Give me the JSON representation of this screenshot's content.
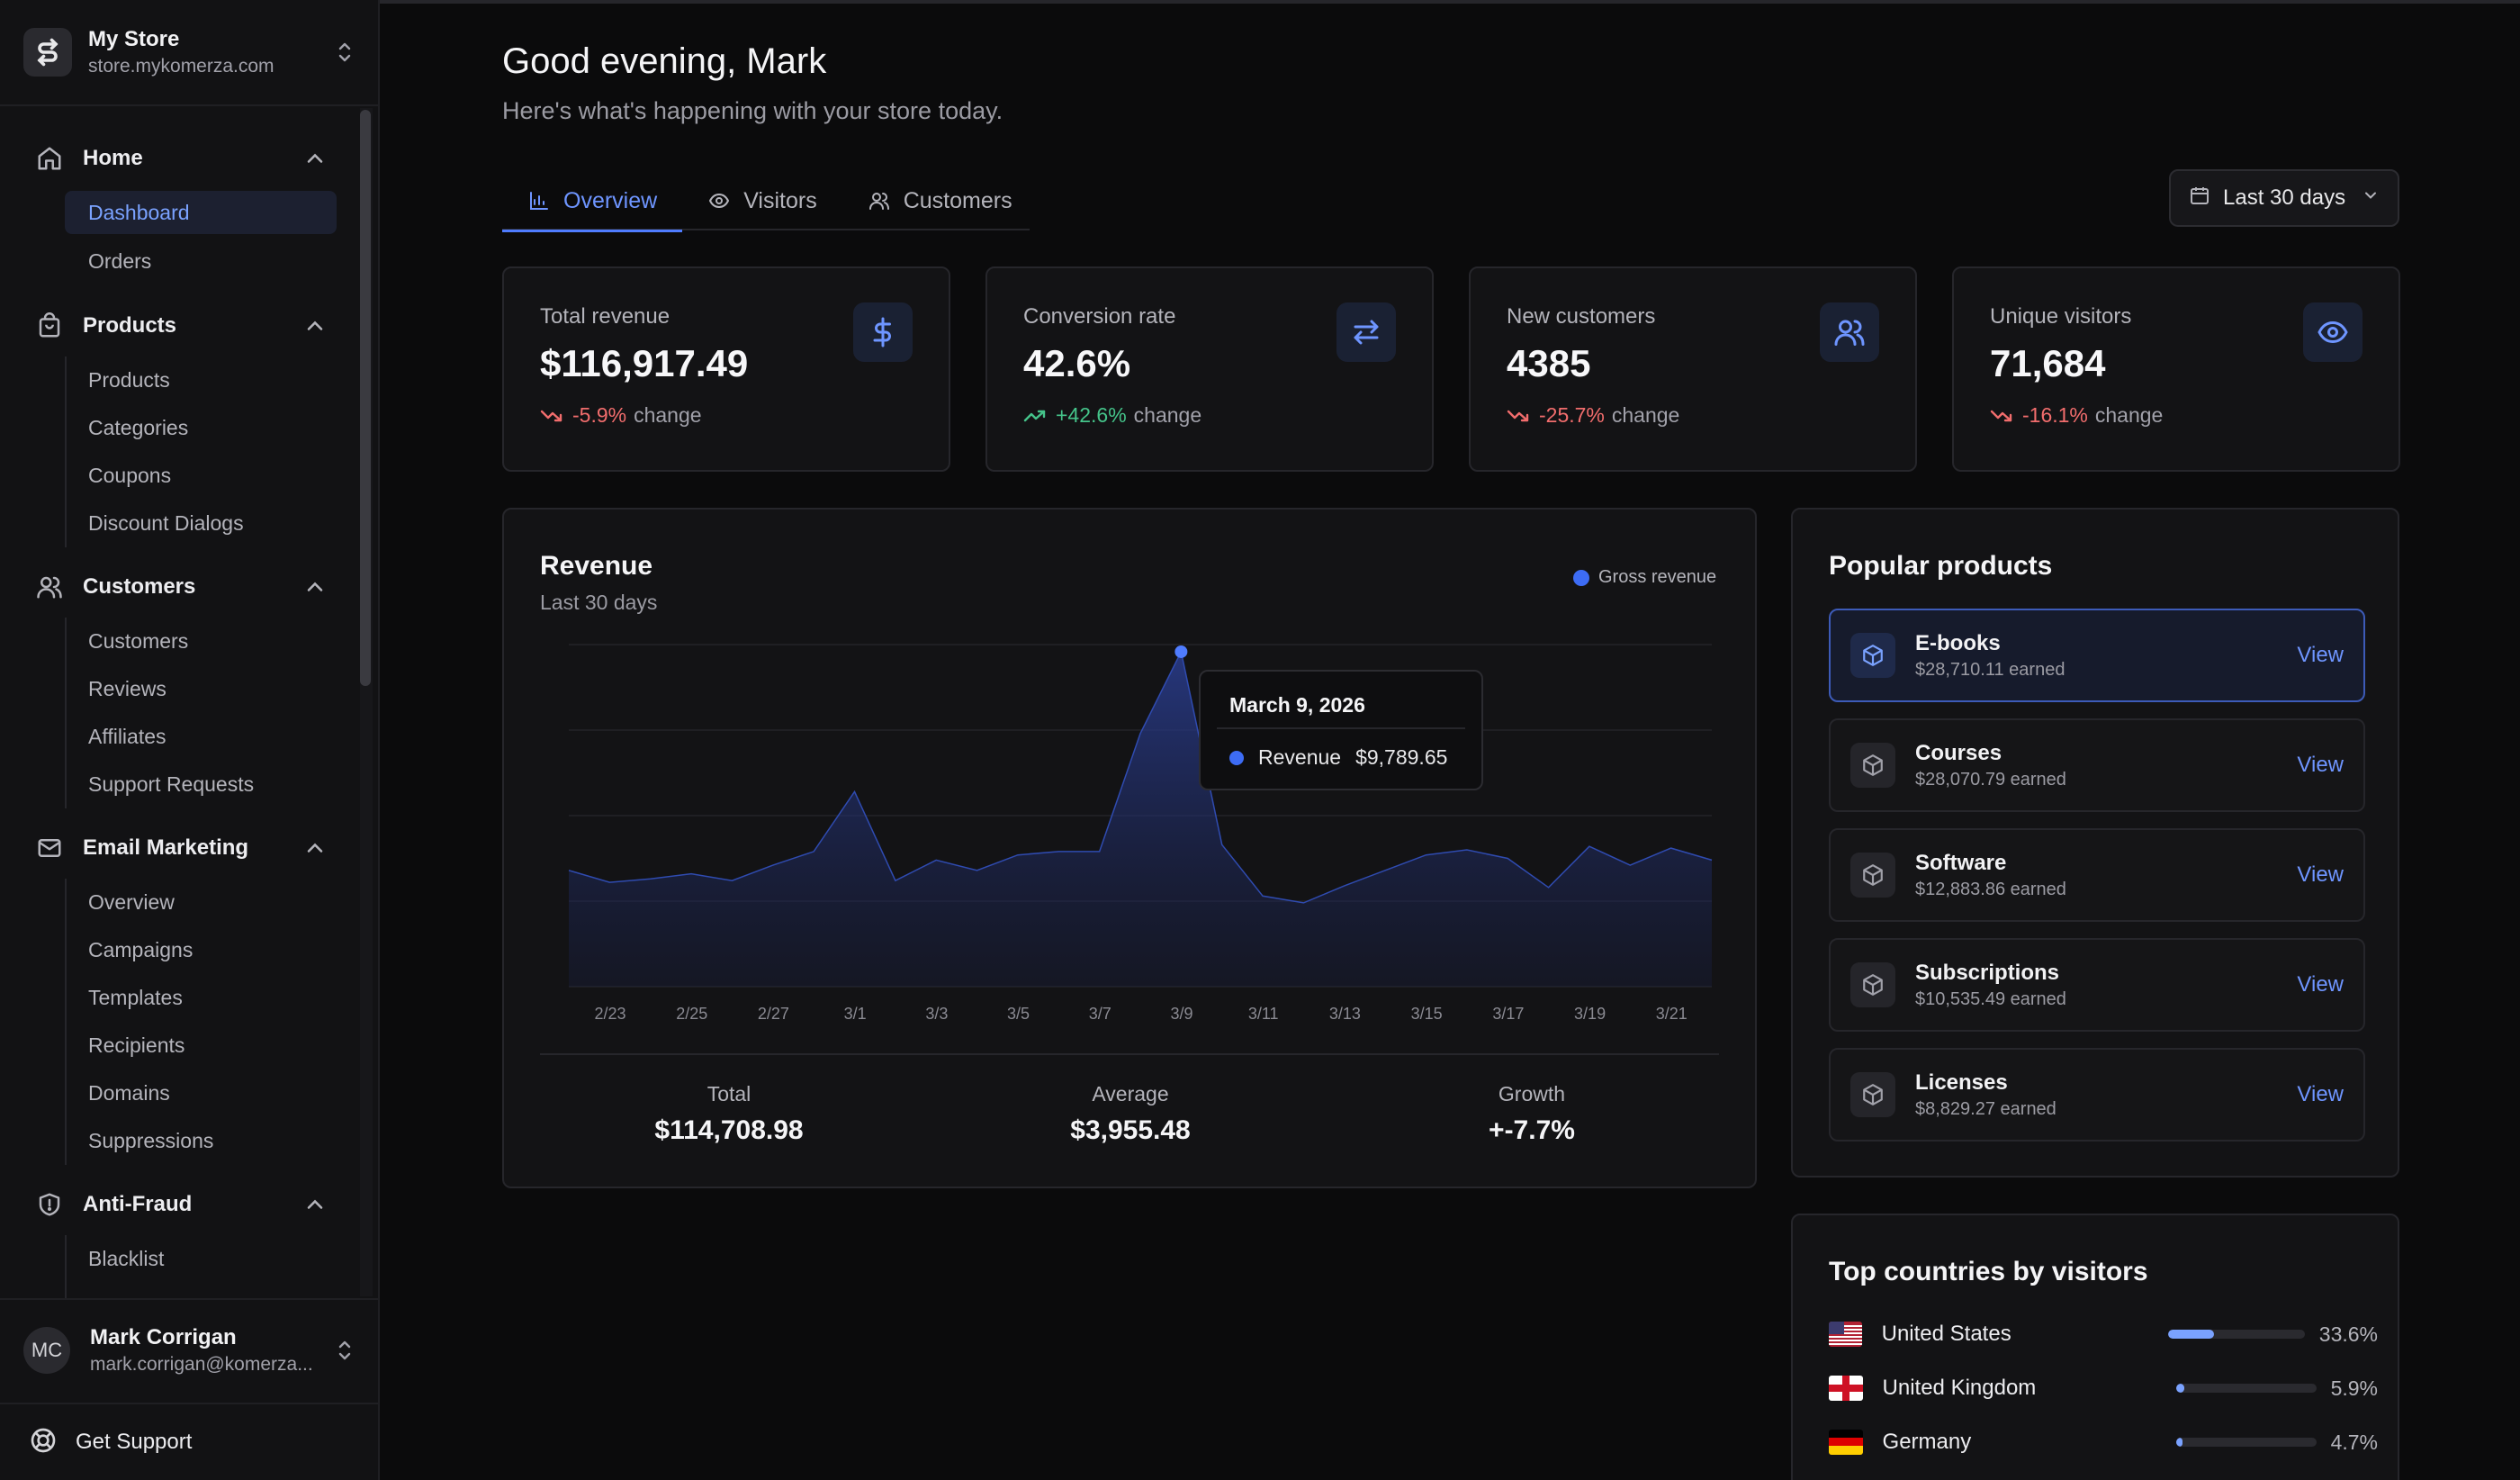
{
  "store": {
    "name": "My Store",
    "domain": "store.mykomerza.com"
  },
  "nav": {
    "groups": [
      {
        "label": "Home",
        "icon": "home-icon",
        "items": [
          "Dashboard",
          "Orders"
        ]
      },
      {
        "label": "Products",
        "icon": "bag-icon",
        "items": [
          "Products",
          "Categories",
          "Coupons",
          "Discount Dialogs"
        ]
      },
      {
        "label": "Customers",
        "icon": "users-icon",
        "items": [
          "Customers",
          "Reviews",
          "Affiliates",
          "Support Requests"
        ]
      },
      {
        "label": "Email Marketing",
        "icon": "mail-icon",
        "items": [
          "Overview",
          "Campaigns",
          "Templates",
          "Recipients",
          "Domains",
          "Suppressions"
        ]
      },
      {
        "label": "Anti-Fraud",
        "icon": "shield-icon",
        "items": [
          "Blacklist"
        ]
      }
    ],
    "active_item": "Dashboard"
  },
  "user": {
    "initials": "MC",
    "name": "Mark Corrigan",
    "email": "mark.corrigan@komerza..."
  },
  "support_label": "Get Support",
  "header": {
    "greeting": "Good evening, Mark",
    "subtitle": "Here's what's happening with your store today."
  },
  "tabs": [
    {
      "label": "Overview",
      "icon": "chart-icon",
      "active": true
    },
    {
      "label": "Visitors",
      "icon": "eye-icon",
      "active": false
    },
    {
      "label": "Customers",
      "icon": "users-icon",
      "active": false
    }
  ],
  "date_range": "Last 30 days",
  "stats": [
    {
      "label": "Total revenue",
      "value": "$116,917.49",
      "change": "-5.9%",
      "suffix": "change",
      "trend": "down",
      "icon": "dollar-icon"
    },
    {
      "label": "Conversion rate",
      "value": "42.6%",
      "change": "+42.6%",
      "suffix": "change",
      "trend": "up",
      "icon": "arrows-icon"
    },
    {
      "label": "New customers",
      "value": "4385",
      "change": "-25.7%",
      "suffix": "change",
      "trend": "down",
      "icon": "users-icon"
    },
    {
      "label": "Unique visitors",
      "value": "71,684",
      "change": "-16.1%",
      "suffix": "change",
      "trend": "down",
      "icon": "eye-icon"
    }
  ],
  "revenue": {
    "title": "Revenue",
    "subtitle": "Last 30 days",
    "legend": "Gross revenue",
    "tooltip": {
      "date": "March 9, 2026",
      "label": "Revenue",
      "value": "$9,789.65"
    },
    "summary": [
      {
        "label": "Total",
        "value": "$114,708.98"
      },
      {
        "label": "Average",
        "value": "$3,955.48"
      },
      {
        "label": "Growth",
        "value": "+-7.7%"
      }
    ]
  },
  "chart_data": {
    "type": "area",
    "title": "Revenue",
    "subtitle": "Last 30 days",
    "series": [
      {
        "name": "Gross revenue",
        "values": [
          3400,
          3050,
          3150,
          3300,
          3100,
          3550,
          3950,
          5700,
          3100,
          3700,
          3400,
          3850,
          3950,
          3950,
          7400,
          9790,
          4150,
          2650,
          2450,
          2950,
          3400,
          3850,
          4000,
          3750,
          2900,
          4100,
          3550,
          4050,
          3700
        ]
      }
    ],
    "x_labels": [
      "2/23",
      "2/25",
      "2/27",
      "3/1",
      "3/3",
      "3/5",
      "3/7",
      "3/9",
      "3/11",
      "3/13",
      "3/15",
      "3/17",
      "3/19",
      "3/21"
    ],
    "ylim": [
      0,
      10000
    ],
    "grid": true,
    "legend_position": "top-right",
    "highlight_index": 15
  },
  "popular_products": {
    "title": "Popular products",
    "view_label": "View",
    "items": [
      {
        "name": "E-books",
        "earned": "$28,710.11 earned",
        "selected": true
      },
      {
        "name": "Courses",
        "earned": "$28,070.79 earned",
        "selected": false
      },
      {
        "name": "Software",
        "earned": "$12,883.86 earned",
        "selected": false
      },
      {
        "name": "Subscriptions",
        "earned": "$10,535.49 earned",
        "selected": false
      },
      {
        "name": "Licenses",
        "earned": "$8,829.27 earned",
        "selected": false
      }
    ]
  },
  "top_countries": {
    "title": "Top countries by visitors",
    "items": [
      {
        "name": "United States",
        "pct": "33.6%",
        "value": 33.6,
        "flag": "us-flag-icon"
      },
      {
        "name": "United Kingdom",
        "pct": "5.9%",
        "value": 5.9,
        "flag": "uk-flag-icon"
      },
      {
        "name": "Germany",
        "pct": "4.7%",
        "value": 4.7,
        "flag": "de-flag-icon"
      }
    ]
  },
  "colors": {
    "accent": "#4f7cff",
    "negative": "#f26d6d",
    "positive": "#45c48a",
    "series": "#3d6cf5"
  }
}
